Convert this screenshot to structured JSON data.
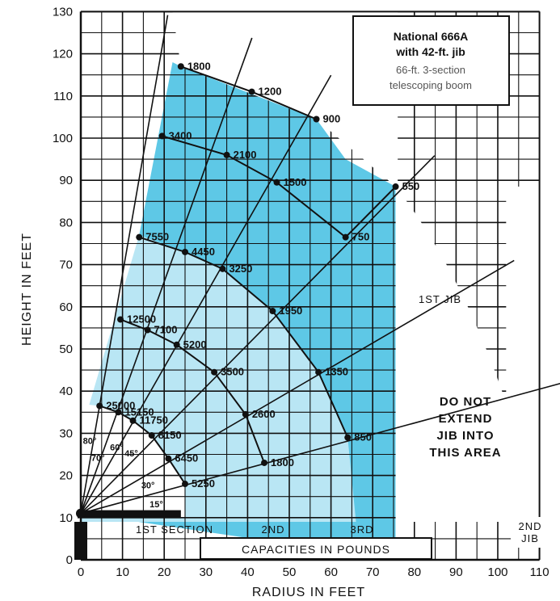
{
  "chart_data": {
    "type": "scatter",
    "title": "National 666A",
    "subtitle": "with 42-ft. jib",
    "description_lines": [
      "66-ft. 3-section",
      "telescoping boom"
    ],
    "xlabel": "RADIUS IN FEET",
    "ylabel": "HEIGHT IN FEET",
    "xlim": [
      0,
      110
    ],
    "ylim": [
      0,
      130
    ],
    "x_ticks": [
      "0",
      "10",
      "20",
      "30",
      "40",
      "50",
      "60",
      "70",
      "80",
      "90",
      "100",
      "110"
    ],
    "y_ticks": [
      "0",
      "10",
      "20",
      "30",
      "40",
      "50",
      "60",
      "70",
      "80",
      "90",
      "100",
      "110",
      "120",
      "130"
    ],
    "grid": true,
    "pivot": [
      0,
      11
    ],
    "series": [
      {
        "name": "1ST SECTION",
        "points": [
          {
            "x": 25,
            "y": 18,
            "label": "5250"
          },
          {
            "x": 21,
            "y": 24,
            "label": "6450"
          },
          {
            "x": 17,
            "y": 29.5,
            "label": "8150"
          },
          {
            "x": 12.5,
            "y": 33,
            "label": "11750"
          },
          {
            "x": 9,
            "y": 35,
            "label": "15150"
          },
          {
            "x": 4.5,
            "y": 36.5,
            "label": "25000"
          }
        ]
      },
      {
        "name": "2ND",
        "points": [
          {
            "x": 44,
            "y": 23,
            "label": "1800"
          },
          {
            "x": 39.5,
            "y": 34.5,
            "label": "2600"
          },
          {
            "x": 32,
            "y": 44.5,
            "label": "3500"
          },
          {
            "x": 23,
            "y": 51,
            "label": "5200"
          },
          {
            "x": 16,
            "y": 54.5,
            "label": "7100"
          },
          {
            "x": 9.5,
            "y": 57,
            "label": "12500"
          }
        ]
      },
      {
        "name": "3RD",
        "points": [
          {
            "x": 64,
            "y": 29,
            "label": "850"
          },
          {
            "x": 57,
            "y": 44.5,
            "label": "1350"
          },
          {
            "x": 46,
            "y": 59,
            "label": "1950"
          },
          {
            "x": 34,
            "y": 69,
            "label": "3250"
          },
          {
            "x": 25,
            "y": 73,
            "label": "4450"
          },
          {
            "x": 14,
            "y": 76.5,
            "label": "7550"
          }
        ]
      },
      {
        "name": "1ST JIB",
        "points": [
          {
            "x": 75.5,
            "y": 88.5,
            "label": "550"
          },
          {
            "x": 63.5,
            "y": 76.5,
            "label": "750"
          },
          {
            "x": 47,
            "y": 89.5,
            "label": "1500"
          },
          {
            "x": 35,
            "y": 96,
            "label": "2100"
          },
          {
            "x": 19.5,
            "y": 100.5,
            "label": "3400"
          }
        ]
      },
      {
        "name": "2ND JIB",
        "points": [
          {
            "x": 56.5,
            "y": 104.5,
            "label": "900"
          },
          {
            "x": 41,
            "y": 111,
            "label": "1200"
          },
          {
            "x": 24,
            "y": 117,
            "label": "1800"
          }
        ]
      }
    ],
    "angle_labels": [
      {
        "label": "15°",
        "x": 16.5,
        "y": 12.5
      },
      {
        "label": "30°",
        "x": 14.5,
        "y": 17
      },
      {
        "label": "45°",
        "x": 10.5,
        "y": 24.5
      },
      {
        "label": "60°",
        "x": 7,
        "y": 26
      },
      {
        "label": "70°",
        "x": 2.5,
        "y": 23.5
      },
      {
        "label": "80°",
        "x": 0.5,
        "y": 27.5
      }
    ],
    "section_labels": [
      "1ST SECTION",
      "2ND",
      "3RD",
      "2ND JIB"
    ],
    "jib_label": "1ST JIB",
    "warning_lines": [
      "DO NOT",
      "EXTEND",
      "JIB INTO",
      "THIS AREA"
    ],
    "capacity_label": "CAPACITIES IN POUNDS",
    "colors": {
      "blue": "#5ec8e6",
      "light_blue": "#b9e6f4",
      "grid": "#111111"
    }
  }
}
